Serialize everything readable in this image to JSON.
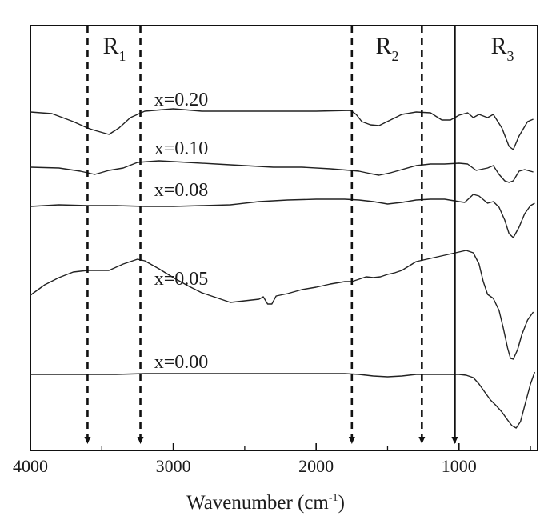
{
  "chart_data": {
    "type": "line",
    "xlabel": "Wavenumber  (cm",
    "xlabel_sup": "-1",
    "xlabel_end": ")",
    "xlim": [
      4000,
      450
    ],
    "xticks": [
      {
        "value": 4000,
        "label": "4000"
      },
      {
        "value": 3000,
        "label": "3000"
      },
      {
        "value": 2000,
        "label": "2000"
      },
      {
        "value": 1000,
        "label": "1000"
      }
    ],
    "y_axis": "transmittance (arbitrary offset, no scale shown)",
    "series": [
      {
        "name": "x=0.20",
        "label_x": 2950,
        "points": [
          [
            4000,
            140
          ],
          [
            3850,
            142
          ],
          [
            3700,
            152
          ],
          [
            3600,
            160
          ],
          [
            3550,
            163
          ],
          [
            3450,
            168
          ],
          [
            3380,
            160
          ],
          [
            3300,
            147
          ],
          [
            3200,
            139
          ],
          [
            3000,
            136
          ],
          [
            2800,
            139
          ],
          [
            2600,
            139
          ],
          [
            2400,
            139
          ],
          [
            2200,
            139
          ],
          [
            2000,
            139
          ],
          [
            1760,
            138
          ],
          [
            1720,
            143
          ],
          [
            1680,
            152
          ],
          [
            1620,
            156
          ],
          [
            1560,
            157
          ],
          [
            1480,
            150
          ],
          [
            1400,
            143
          ],
          [
            1300,
            140
          ],
          [
            1200,
            141
          ],
          [
            1120,
            150
          ],
          [
            1060,
            150
          ],
          [
            1000,
            144
          ],
          [
            940,
            141
          ],
          [
            900,
            147
          ],
          [
            860,
            143
          ],
          [
            800,
            147
          ],
          [
            760,
            143
          ],
          [
            700,
            160
          ],
          [
            650,
            183
          ],
          [
            620,
            187
          ],
          [
            580,
            170
          ],
          [
            520,
            152
          ],
          [
            480,
            149
          ]
        ]
      },
      {
        "name": "x=0.10",
        "label_x": 2950,
        "points": [
          [
            4000,
            209
          ],
          [
            3800,
            210
          ],
          [
            3650,
            214
          ],
          [
            3550,
            218
          ],
          [
            3450,
            213
          ],
          [
            3350,
            210
          ],
          [
            3250,
            203
          ],
          [
            3100,
            201
          ],
          [
            2900,
            203
          ],
          [
            2700,
            205
          ],
          [
            2500,
            207
          ],
          [
            2300,
            209
          ],
          [
            2100,
            209
          ],
          [
            1900,
            211
          ],
          [
            1760,
            213
          ],
          [
            1700,
            214
          ],
          [
            1620,
            217
          ],
          [
            1560,
            219
          ],
          [
            1480,
            216
          ],
          [
            1400,
            212
          ],
          [
            1300,
            207
          ],
          [
            1200,
            205
          ],
          [
            1100,
            205
          ],
          [
            1000,
            204
          ],
          [
            940,
            205
          ],
          [
            880,
            213
          ],
          [
            800,
            210
          ],
          [
            760,
            207
          ],
          [
            720,
            218
          ],
          [
            680,
            226
          ],
          [
            650,
            228
          ],
          [
            620,
            226
          ],
          [
            580,
            214
          ],
          [
            540,
            212
          ],
          [
            480,
            215
          ]
        ]
      },
      {
        "name": "x=0.08",
        "label_x": 2950,
        "points": [
          [
            4000,
            258
          ],
          [
            3800,
            256
          ],
          [
            3600,
            257
          ],
          [
            3400,
            257
          ],
          [
            3200,
            258
          ],
          [
            3000,
            258
          ],
          [
            2800,
            257
          ],
          [
            2600,
            256
          ],
          [
            2400,
            252
          ],
          [
            2200,
            250
          ],
          [
            2000,
            249
          ],
          [
            1800,
            249
          ],
          [
            1700,
            250
          ],
          [
            1600,
            252
          ],
          [
            1500,
            255
          ],
          [
            1400,
            253
          ],
          [
            1300,
            250
          ],
          [
            1200,
            249
          ],
          [
            1100,
            249
          ],
          [
            1000,
            252
          ],
          [
            960,
            253
          ],
          [
            900,
            243
          ],
          [
            860,
            245
          ],
          [
            800,
            254
          ],
          [
            760,
            252
          ],
          [
            720,
            259
          ],
          [
            680,
            275
          ],
          [
            650,
            292
          ],
          [
            620,
            297
          ],
          [
            580,
            284
          ],
          [
            540,
            267
          ],
          [
            500,
            257
          ],
          [
            470,
            254
          ]
        ]
      },
      {
        "name": "x=0.05",
        "label_x": 2950,
        "points": [
          [
            4000,
            369
          ],
          [
            3900,
            356
          ],
          [
            3800,
            347
          ],
          [
            3700,
            340
          ],
          [
            3600,
            338
          ],
          [
            3450,
            338
          ],
          [
            3350,
            330
          ],
          [
            3250,
            324
          ],
          [
            3200,
            326
          ],
          [
            3100,
            336
          ],
          [
            3000,
            347
          ],
          [
            2900,
            357
          ],
          [
            2800,
            366
          ],
          [
            2700,
            372
          ],
          [
            2600,
            378
          ],
          [
            2500,
            376
          ],
          [
            2400,
            374
          ],
          [
            2370,
            371
          ],
          [
            2340,
            380
          ],
          [
            2310,
            380
          ],
          [
            2280,
            370
          ],
          [
            2200,
            367
          ],
          [
            2100,
            362
          ],
          [
            2000,
            359
          ],
          [
            1900,
            355
          ],
          [
            1800,
            352
          ],
          [
            1750,
            352
          ],
          [
            1700,
            349
          ],
          [
            1650,
            346
          ],
          [
            1600,
            347
          ],
          [
            1550,
            346
          ],
          [
            1500,
            343
          ],
          [
            1450,
            341
          ],
          [
            1400,
            338
          ],
          [
            1300,
            327
          ],
          [
            1250,
            325
          ],
          [
            1200,
            323
          ],
          [
            1100,
            319
          ],
          [
            1000,
            315
          ],
          [
            950,
            313
          ],
          [
            900,
            316
          ],
          [
            860,
            330
          ],
          [
            830,
            352
          ],
          [
            800,
            368
          ],
          [
            760,
            373
          ],
          [
            720,
            388
          ],
          [
            690,
            410
          ],
          [
            660,
            435
          ],
          [
            640,
            448
          ],
          [
            620,
            449
          ],
          [
            590,
            437
          ],
          [
            560,
            418
          ],
          [
            520,
            400
          ],
          [
            480,
            390
          ]
        ]
      },
      {
        "name": "x=0.00",
        "label_x": 2950,
        "points": [
          [
            4000,
            468
          ],
          [
            3800,
            468
          ],
          [
            3600,
            468
          ],
          [
            3400,
            468
          ],
          [
            3200,
            467
          ],
          [
            3000,
            467
          ],
          [
            2800,
            467
          ],
          [
            2600,
            467
          ],
          [
            2400,
            467
          ],
          [
            2200,
            467
          ],
          [
            2000,
            467
          ],
          [
            1800,
            467
          ],
          [
            1700,
            468
          ],
          [
            1600,
            470
          ],
          [
            1500,
            471
          ],
          [
            1400,
            470
          ],
          [
            1300,
            468
          ],
          [
            1200,
            468
          ],
          [
            1100,
            468
          ],
          [
            1000,
            468
          ],
          [
            950,
            469
          ],
          [
            900,
            472
          ],
          [
            860,
            480
          ],
          [
            820,
            490
          ],
          [
            780,
            500
          ],
          [
            740,
            507
          ],
          [
            700,
            515
          ],
          [
            660,
            525
          ],
          [
            630,
            532
          ],
          [
            600,
            535
          ],
          [
            570,
            527
          ],
          [
            540,
            507
          ],
          [
            500,
            480
          ],
          [
            470,
            465
          ]
        ]
      }
    ],
    "regions": [
      {
        "label": "R",
        "sub": "1",
        "line_values": [
          3600,
          3230
        ],
        "style": "dashed"
      },
      {
        "label": "R",
        "sub": "2",
        "line_values": [
          1750,
          1260
        ],
        "style": "dashed"
      },
      {
        "label": "R",
        "sub": "3",
        "line_values": [
          1030
        ],
        "style": "solid"
      }
    ]
  }
}
